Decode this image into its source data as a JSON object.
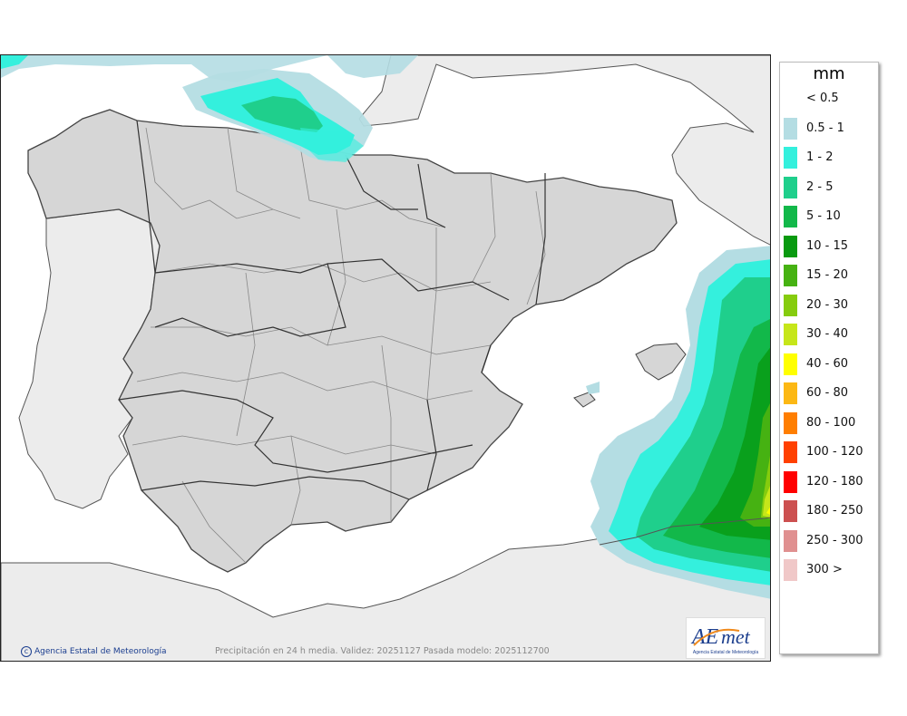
{
  "legend": {
    "unit": "mm",
    "items": [
      {
        "label": "< 0.5",
        "color": "#ffffff"
      },
      {
        "label": "0.5 - 1",
        "color": "#b4dde3"
      },
      {
        "label": "1 - 2",
        "color": "#34f0dd"
      },
      {
        "label": "2 - 5",
        "color": "#1fcf8c"
      },
      {
        "label": "5 - 10",
        "color": "#12b84a"
      },
      {
        "label": "10 - 15",
        "color": "#089a10"
      },
      {
        "label": "15 - 20",
        "color": "#46b212"
      },
      {
        "label": "20 - 30",
        "color": "#86cc0e"
      },
      {
        "label": "30 - 40",
        "color": "#c6e61a"
      },
      {
        "label": "40 - 60",
        "color": "#ffff00"
      },
      {
        "label": "60 - 80",
        "color": "#fcb814"
      },
      {
        "label": "80 - 100",
        "color": "#ff7e00"
      },
      {
        "label": "100 - 120",
        "color": "#ff4000"
      },
      {
        "label": "120 - 180",
        "color": "#ff0000"
      },
      {
        "label": "180 - 250",
        "color": "#cc5050"
      },
      {
        "label": "250 - 300",
        "color": "#e09090"
      },
      {
        "label": "300 >",
        "color": "#f0c8c8"
      }
    ]
  },
  "footer": {
    "copyright": "Agencia Estatal de Meteorología",
    "caption": "Precipitación en 24 h media. Validez: 20251127 Pasada modelo: 2025112700"
  },
  "logo": {
    "text": "AEmet",
    "subtitle": "Agencia Estatal de Meteorología",
    "color_blue": "#1d3f8e",
    "color_orange": "#f08a1c"
  },
  "map": {
    "land_color": "#d6d6d6",
    "foreign_land_color": "#ececec",
    "sea_color": "#ffffff"
  }
}
